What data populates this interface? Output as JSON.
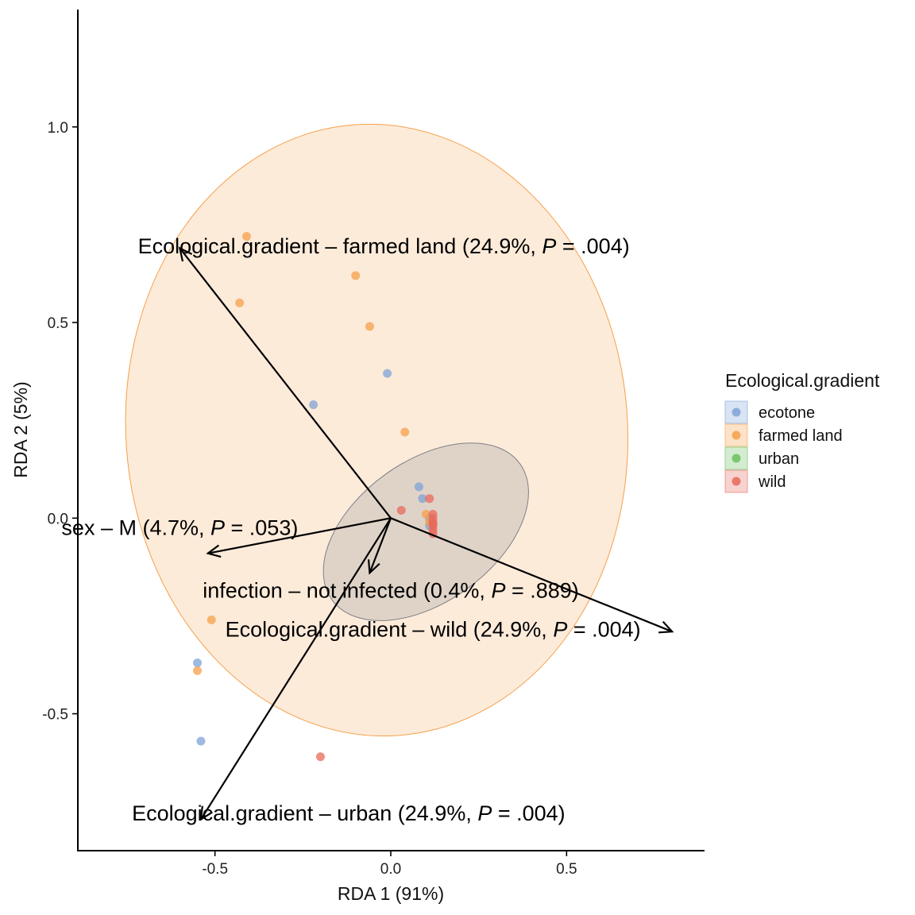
{
  "chart_data": {
    "type": "scatter",
    "xlabel": "RDA 1 (91%)",
    "ylabel": "RDA 2 (5%)",
    "xlim": [
      -0.89,
      0.89
    ],
    "ylim": [
      -0.85,
      1.3
    ],
    "x_ticks": [
      -0.5,
      0.0,
      0.5
    ],
    "x_tick_labels": [
      "-0.5",
      "0.0",
      "0.5"
    ],
    "y_ticks": [
      -0.5,
      0.0,
      0.5,
      1.0
    ],
    "y_tick_labels": [
      "-0.5",
      "0.0",
      "0.5",
      "1.0"
    ],
    "grid": false,
    "legend": {
      "title": "Ecological.gradient",
      "position": "right",
      "entries": [
        {
          "name": "ecotone",
          "color": "#7fa3d6"
        },
        {
          "name": "farmed land",
          "color": "#f5a049"
        },
        {
          "name": "urban",
          "color": "#6dbf5f"
        },
        {
          "name": "wild",
          "color": "#e86a5c"
        }
      ]
    },
    "series": [
      {
        "name": "ecotone",
        "color": "#7fa3d6",
        "x": [
          -0.01,
          -0.22,
          0.08,
          0.09,
          -0.55,
          -0.54,
          0.11,
          0.11
        ],
        "y": [
          0.37,
          0.29,
          0.08,
          0.05,
          -0.37,
          -0.57,
          0.0,
          -0.02
        ]
      },
      {
        "name": "farmed land",
        "color": "#f5a049",
        "x": [
          -0.41,
          -0.1,
          -0.43,
          -0.06,
          0.04,
          -0.51,
          -0.55,
          0.1,
          0.11
        ],
        "y": [
          0.72,
          0.62,
          0.55,
          0.49,
          0.22,
          -0.26,
          -0.39,
          0.01,
          -0.01
        ]
      },
      {
        "name": "urban",
        "color": "#6dbf5f",
        "x": [],
        "y": []
      },
      {
        "name": "wild",
        "color": "#e86a5c",
        "x": [
          0.11,
          0.03,
          0.12,
          0.12,
          0.12,
          0.12,
          0.12,
          0.12,
          0.12,
          -0.2
        ],
        "y": [
          0.05,
          0.02,
          0.01,
          0.0,
          -0.01,
          -0.015,
          -0.02,
          -0.03,
          -0.04,
          -0.61
        ]
      }
    ],
    "ellipses": [
      {
        "name": "farmed land",
        "color": "#f5a049",
        "center": [
          -0.04,
          0.225
        ],
        "semi_axes": [
          0.82,
          0.815
        ]
      },
      {
        "name": "ecotone",
        "color": "#8a8a8a",
        "center": [
          0.1,
          -0.035
        ],
        "semi_axes": [
          0.33,
          0.31
        ]
      }
    ],
    "arrows": [
      {
        "label": "Ecological.gradient – farmed land (24.9%, ",
        "p": ".004",
        "x": -0.6,
        "y": 0.69,
        "label_x": -0.02,
        "label_y": 0.695
      },
      {
        "label": "sex – M (4.7%, ",
        "p": ".053",
        "x": -0.52,
        "y": -0.09,
        "label_x": -0.6,
        "label_y": -0.025
      },
      {
        "label": "infection – not infected (0.4%, ",
        "p": ".889",
        "x": -0.06,
        "y": -0.14,
        "label_x": 0.0,
        "label_y": -0.185
      },
      {
        "label": "Ecological.gradient – wild (24.9%, ",
        "p": ".004",
        "x": 0.8,
        "y": -0.29,
        "label_x": 0.12,
        "label_y": -0.285
      },
      {
        "label": "Ecological.gradient – urban (24.9%, ",
        "p": ".004",
        "x": -0.54,
        "y": -0.77,
        "label_x": -0.12,
        "label_y": -0.755
      }
    ],
    "p_prefix": "P",
    "p_eq": " = ",
    "p_close": ")"
  }
}
